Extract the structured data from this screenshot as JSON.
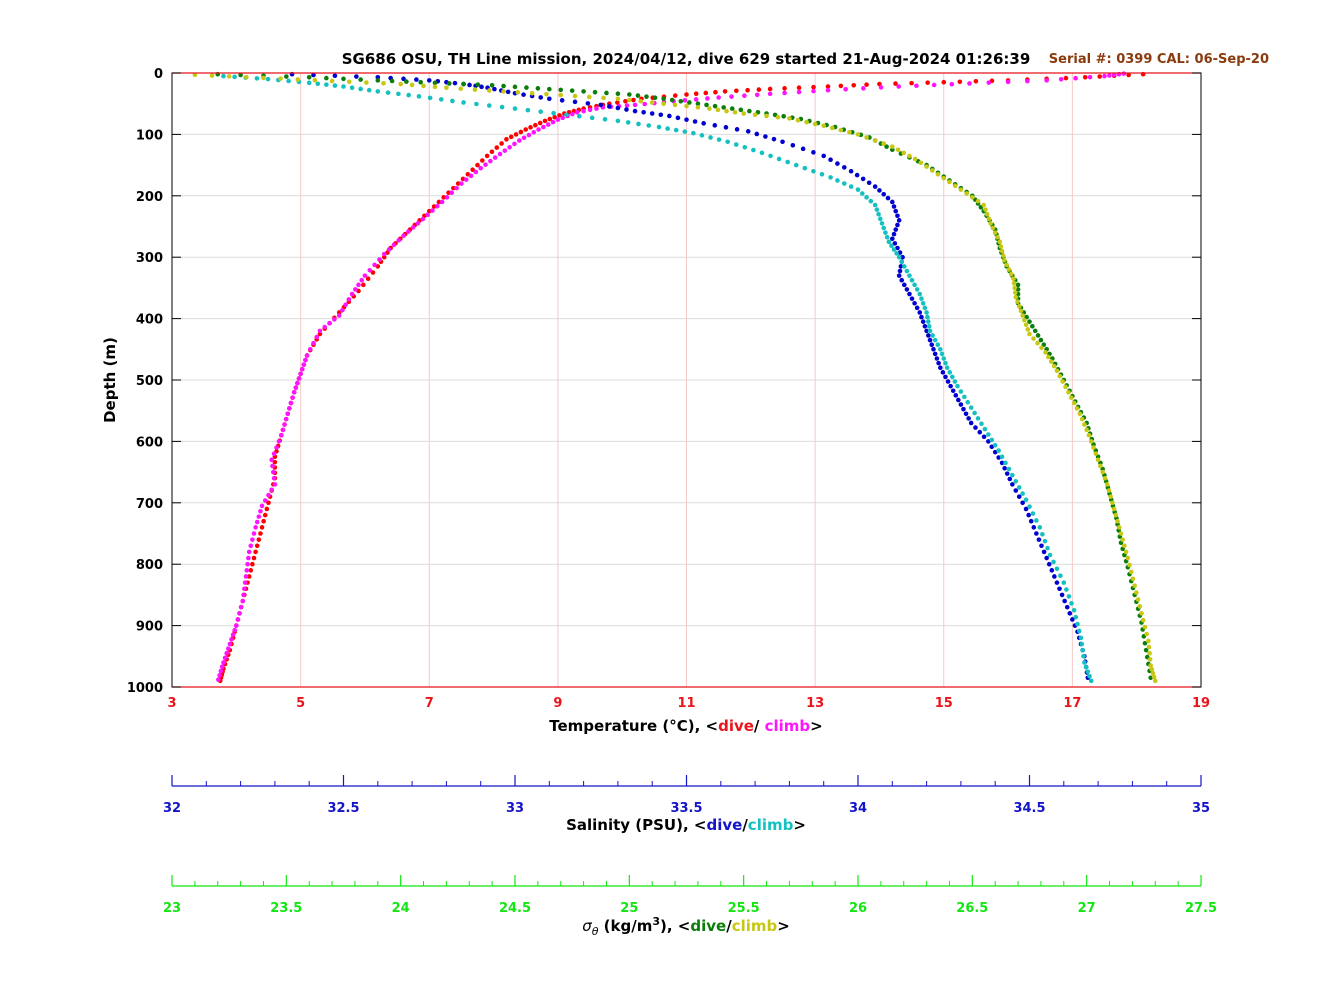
{
  "chart_data": {
    "type": "scatter",
    "title": "SG686 OSU, TH Line mission, 2024/04/12, dive 629 started 21-Aug-2024 01:26:39",
    "serial_note": "Serial #: 0399  CAL: 06-Sep-20",
    "ylabel": "Depth (m)",
    "ylim": [
      0,
      1000
    ],
    "y_ticks": [
      "0",
      "100",
      "200",
      "300",
      "400",
      "500",
      "600",
      "700",
      "800",
      "900",
      "1000"
    ],
    "grid": true,
    "axes": {
      "temperature": {
        "label_prefix": "Temperature (°C), <",
        "label_dive": "dive",
        "label_sep": "/ ",
        "label_climb": "climb",
        "label_suffix": ">",
        "range": [
          3,
          19
        ],
        "ticks": [
          "3",
          "5",
          "7",
          "9",
          "11",
          "13",
          "15",
          "17",
          "19"
        ],
        "color": "#e8151c",
        "dive_color": "#ff0000",
        "climb_color": "#ff14ff"
      },
      "salinity": {
        "label_prefix": "Salinity (PSU), <",
        "label_dive": "dive",
        "label_sep": "/",
        "label_climb": "climb",
        "label_suffix": ">",
        "range": [
          32,
          35
        ],
        "ticks": [
          "32",
          "32.5",
          "33",
          "33.5",
          "34",
          "34.5",
          "35"
        ],
        "color": "#1414c8",
        "dive_color": "#0000d0",
        "climb_color": "#14c0c0"
      },
      "density": {
        "label_sigma": "σ",
        "label_theta": "θ",
        "label_units": " (kg/m",
        "label_exp": "3",
        "label_prefix": "), <",
        "label_dive": "dive",
        "label_sep": "/",
        "label_climb": "climb",
        "label_suffix": ">",
        "range": [
          23,
          27.5
        ],
        "ticks": [
          "23",
          "23.5",
          "24",
          "24.5",
          "25",
          "25.5",
          "26",
          "26.5",
          "27",
          "27.5"
        ],
        "color": "#14e614",
        "dive_color": "#0a7d0a",
        "climb_color": "#c8c814"
      }
    },
    "series": [
      {
        "axis": "temperature",
        "phase": "dive",
        "points": [
          [
            18.1,
            2
          ],
          [
            17.2,
            7
          ],
          [
            16,
            12
          ],
          [
            15,
            15
          ],
          [
            14,
            18
          ],
          [
            13.2,
            22
          ],
          [
            12.3,
            26
          ],
          [
            11.6,
            30
          ],
          [
            11,
            35
          ],
          [
            10.3,
            42
          ],
          [
            9.8,
            50
          ],
          [
            9.4,
            58
          ],
          [
            9.1,
            66
          ],
          [
            8.8,
            78
          ],
          [
            8.5,
            92
          ],
          [
            8.2,
            108
          ],
          [
            7.9,
            135
          ],
          [
            7.6,
            165
          ],
          [
            7.3,
            195
          ],
          [
            7,
            225
          ],
          [
            6.7,
            255
          ],
          [
            6.4,
            285
          ],
          [
            6.2,
            315
          ],
          [
            5.9,
            355
          ],
          [
            5.6,
            390
          ],
          [
            5.3,
            425
          ],
          [
            5.1,
            460
          ],
          [
            5,
            490
          ],
          [
            4.9,
            520
          ],
          [
            4.8,
            555
          ],
          [
            4.7,
            590
          ],
          [
            4.6,
            625
          ],
          [
            4.6,
            660
          ],
          [
            4.5,
            700
          ],
          [
            4.4,
            740
          ],
          [
            4.3,
            780
          ],
          [
            4.2,
            820
          ],
          [
            4.1,
            860
          ],
          [
            4,
            900
          ],
          [
            3.9,
            940
          ],
          [
            3.8,
            970
          ],
          [
            3.75,
            990
          ]
        ]
      },
      {
        "axis": "temperature",
        "phase": "climb",
        "points": [
          [
            3.72,
            988
          ],
          [
            3.8,
            960
          ],
          [
            3.9,
            930
          ],
          [
            4,
            900
          ],
          [
            4.1,
            860
          ],
          [
            4.15,
            820
          ],
          [
            4.2,
            780
          ],
          [
            4.3,
            740
          ],
          [
            4.4,
            705
          ],
          [
            4.6,
            670
          ],
          [
            4.55,
            630
          ],
          [
            4.7,
            590
          ],
          [
            4.8,
            555
          ],
          [
            4.9,
            520
          ],
          [
            5,
            490
          ],
          [
            5.1,
            460
          ],
          [
            5.3,
            420
          ],
          [
            5.6,
            395
          ],
          [
            5.8,
            360
          ],
          [
            6,
            330
          ],
          [
            6.3,
            295
          ],
          [
            6.6,
            265
          ],
          [
            6.9,
            238
          ],
          [
            7.2,
            210
          ],
          [
            7.5,
            180
          ],
          [
            7.8,
            155
          ],
          [
            8.1,
            132
          ],
          [
            8.4,
            110
          ],
          [
            8.7,
            92
          ],
          [
            9,
            76
          ],
          [
            9.3,
            64
          ],
          [
            9.7,
            56
          ],
          [
            10.2,
            52
          ],
          [
            10.8,
            46
          ],
          [
            11.5,
            40
          ],
          [
            12.3,
            34
          ],
          [
            13.2,
            28
          ],
          [
            14.3,
            22
          ],
          [
            15.4,
            17
          ],
          [
            16.6,
            12
          ],
          [
            17.5,
            5
          ],
          [
            17.8,
            1
          ]
        ]
      },
      {
        "axis": "salinity",
        "phase": "dive",
        "points": [
          [
            32.35,
            2
          ],
          [
            32.6,
            7
          ],
          [
            32.75,
            12
          ],
          [
            32.85,
            18
          ],
          [
            32.92,
            24
          ],
          [
            33,
            33
          ],
          [
            33.1,
            42
          ],
          [
            33.25,
            52
          ],
          [
            33.35,
            62
          ],
          [
            33.45,
            70
          ],
          [
            33.55,
            82
          ],
          [
            33.68,
            95
          ],
          [
            33.78,
            112
          ],
          [
            33.9,
            135
          ],
          [
            33.98,
            160
          ],
          [
            34.05,
            185
          ],
          [
            34.1,
            210
          ],
          [
            34.12,
            240
          ],
          [
            34.1,
            270
          ],
          [
            34.13,
            300
          ],
          [
            34.12,
            330
          ],
          [
            34.15,
            360
          ],
          [
            34.18,
            390
          ],
          [
            34.2,
            420
          ],
          [
            34.22,
            450
          ],
          [
            34.24,
            480
          ],
          [
            34.27,
            510
          ],
          [
            34.3,
            540
          ],
          [
            34.33,
            570
          ],
          [
            34.38,
            600
          ],
          [
            34.42,
            635
          ],
          [
            34.45,
            670
          ],
          [
            34.49,
            710
          ],
          [
            34.52,
            750
          ],
          [
            34.55,
            790
          ],
          [
            34.58,
            830
          ],
          [
            34.61,
            870
          ],
          [
            34.64,
            910
          ],
          [
            34.66,
            950
          ],
          [
            34.67,
            985
          ]
        ]
      },
      {
        "axis": "salinity",
        "phase": "climb",
        "points": [
          [
            32.15,
            5
          ],
          [
            32.28,
            10
          ],
          [
            32.4,
            16
          ],
          [
            32.5,
            22
          ],
          [
            32.6,
            30
          ],
          [
            32.72,
            38
          ],
          [
            32.85,
            48
          ],
          [
            33,
            58
          ],
          [
            33.15,
            68
          ],
          [
            33.3,
            78
          ],
          [
            33.42,
            88
          ],
          [
            33.52,
            98
          ],
          [
            33.62,
            112
          ],
          [
            33.72,
            130
          ],
          [
            33.82,
            150
          ],
          [
            33.92,
            170
          ],
          [
            34,
            190
          ],
          [
            34.05,
            215
          ],
          [
            34.07,
            245
          ],
          [
            34.09,
            275
          ],
          [
            34.12,
            300
          ],
          [
            34.15,
            330
          ],
          [
            34.18,
            360
          ],
          [
            34.2,
            390
          ],
          [
            34.21,
            420
          ],
          [
            34.24,
            450
          ],
          [
            34.26,
            480
          ],
          [
            34.29,
            510
          ],
          [
            34.33,
            545
          ],
          [
            34.37,
            580
          ],
          [
            34.41,
            615
          ],
          [
            34.45,
            655
          ],
          [
            34.49,
            695
          ],
          [
            34.53,
            740
          ],
          [
            34.56,
            785
          ],
          [
            34.6,
            830
          ],
          [
            34.63,
            875
          ],
          [
            34.65,
            920
          ],
          [
            34.66,
            960
          ],
          [
            34.68,
            990
          ]
        ]
      },
      {
        "axis": "density",
        "phase": "dive",
        "points": [
          [
            23.2,
            2
          ],
          [
            23.6,
            7
          ],
          [
            23.9,
            12
          ],
          [
            24.15,
            16
          ],
          [
            24.4,
            20
          ],
          [
            24.6,
            25
          ],
          [
            24.8,
            30
          ],
          [
            25,
            35
          ],
          [
            25.15,
            42
          ],
          [
            25.3,
            50
          ],
          [
            25.45,
            58
          ],
          [
            25.6,
            66
          ],
          [
            25.75,
            75
          ],
          [
            25.9,
            88
          ],
          [
            26.05,
            105
          ],
          [
            26.15,
            125
          ],
          [
            26.3,
            150
          ],
          [
            26.4,
            175
          ],
          [
            26.5,
            200
          ],
          [
            26.55,
            225
          ],
          [
            26.6,
            255
          ],
          [
            26.62,
            285
          ],
          [
            26.65,
            315
          ],
          [
            26.7,
            345
          ],
          [
            26.7,
            375
          ],
          [
            26.75,
            405
          ],
          [
            26.8,
            435
          ],
          [
            26.85,
            465
          ],
          [
            26.9,
            500
          ],
          [
            26.95,
            535
          ],
          [
            27,
            570
          ],
          [
            27.03,
            605
          ],
          [
            27.07,
            645
          ],
          [
            27.1,
            685
          ],
          [
            27.13,
            725
          ],
          [
            27.15,
            765
          ],
          [
            27.18,
            805
          ],
          [
            27.21,
            850
          ],
          [
            27.24,
            895
          ],
          [
            27.26,
            940
          ],
          [
            27.28,
            985
          ]
        ]
      },
      {
        "axis": "density",
        "phase": "climb",
        "points": [
          [
            23.1,
            3
          ],
          [
            23.4,
            8
          ],
          [
            23.7,
            13
          ],
          [
            24,
            18
          ],
          [
            24.2,
            24
          ],
          [
            24.45,
            30
          ],
          [
            24.7,
            36
          ],
          [
            24.95,
            42
          ],
          [
            25.15,
            50
          ],
          [
            25.35,
            58
          ],
          [
            25.5,
            66
          ],
          [
            25.7,
            74
          ],
          [
            25.85,
            86
          ],
          [
            26,
            100
          ],
          [
            26.15,
            120
          ],
          [
            26.25,
            140
          ],
          [
            26.35,
            165
          ],
          [
            26.45,
            190
          ],
          [
            26.55,
            215
          ],
          [
            26.58,
            245
          ],
          [
            26.62,
            275
          ],
          [
            26.64,
            305
          ],
          [
            26.68,
            335
          ],
          [
            26.69,
            365
          ],
          [
            26.72,
            395
          ],
          [
            26.75,
            425
          ],
          [
            26.82,
            455
          ],
          [
            26.87,
            485
          ],
          [
            26.92,
            520
          ],
          [
            26.97,
            555
          ],
          [
            27.01,
            590
          ],
          [
            27.05,
            630
          ],
          [
            27.09,
            670
          ],
          [
            27.12,
            710
          ],
          [
            27.15,
            750
          ],
          [
            27.18,
            790
          ],
          [
            27.21,
            835
          ],
          [
            27.24,
            880
          ],
          [
            27.27,
            925
          ],
          [
            27.28,
            965
          ],
          [
            27.3,
            990
          ]
        ]
      }
    ]
  }
}
